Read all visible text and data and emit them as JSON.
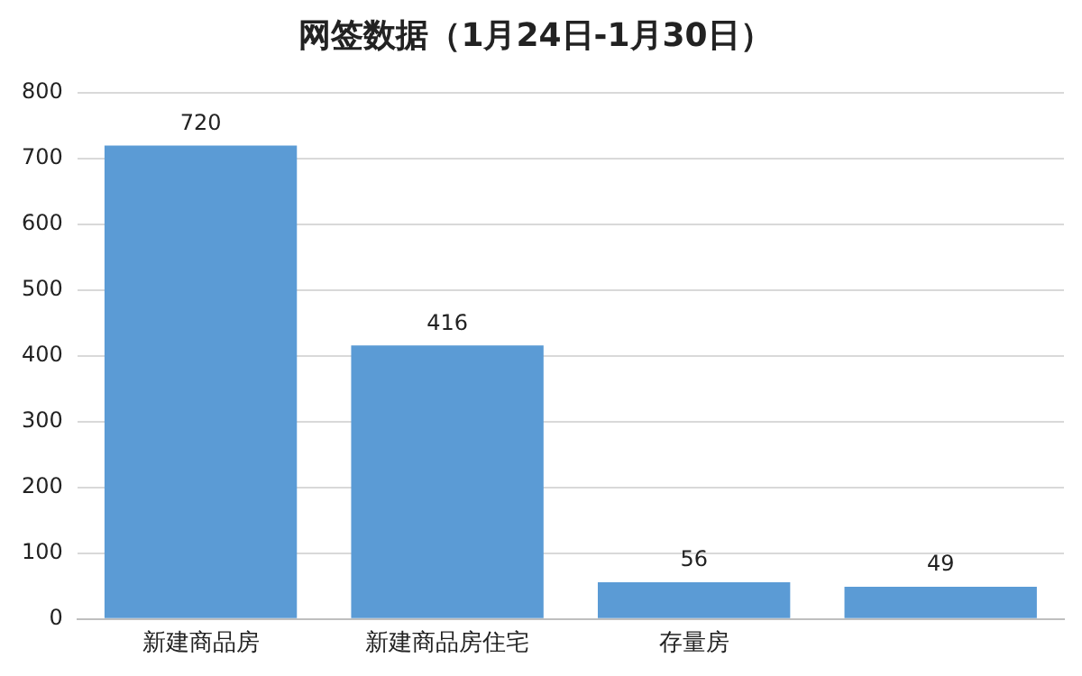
{
  "chart_data": {
    "type": "bar",
    "title": "网签数据（1月24日-1月30日）",
    "categories": [
      "新建商品房",
      "新建商品房住宅",
      "存量房",
      null
    ],
    "values": [
      720,
      416,
      56,
      49
    ],
    "color": "#5b9bd5",
    "ylim": [
      0,
      800
    ],
    "yticks": [
      0,
      100,
      200,
      300,
      400,
      500,
      600,
      700,
      800
    ],
    "grid": "y",
    "data_labels": true
  }
}
